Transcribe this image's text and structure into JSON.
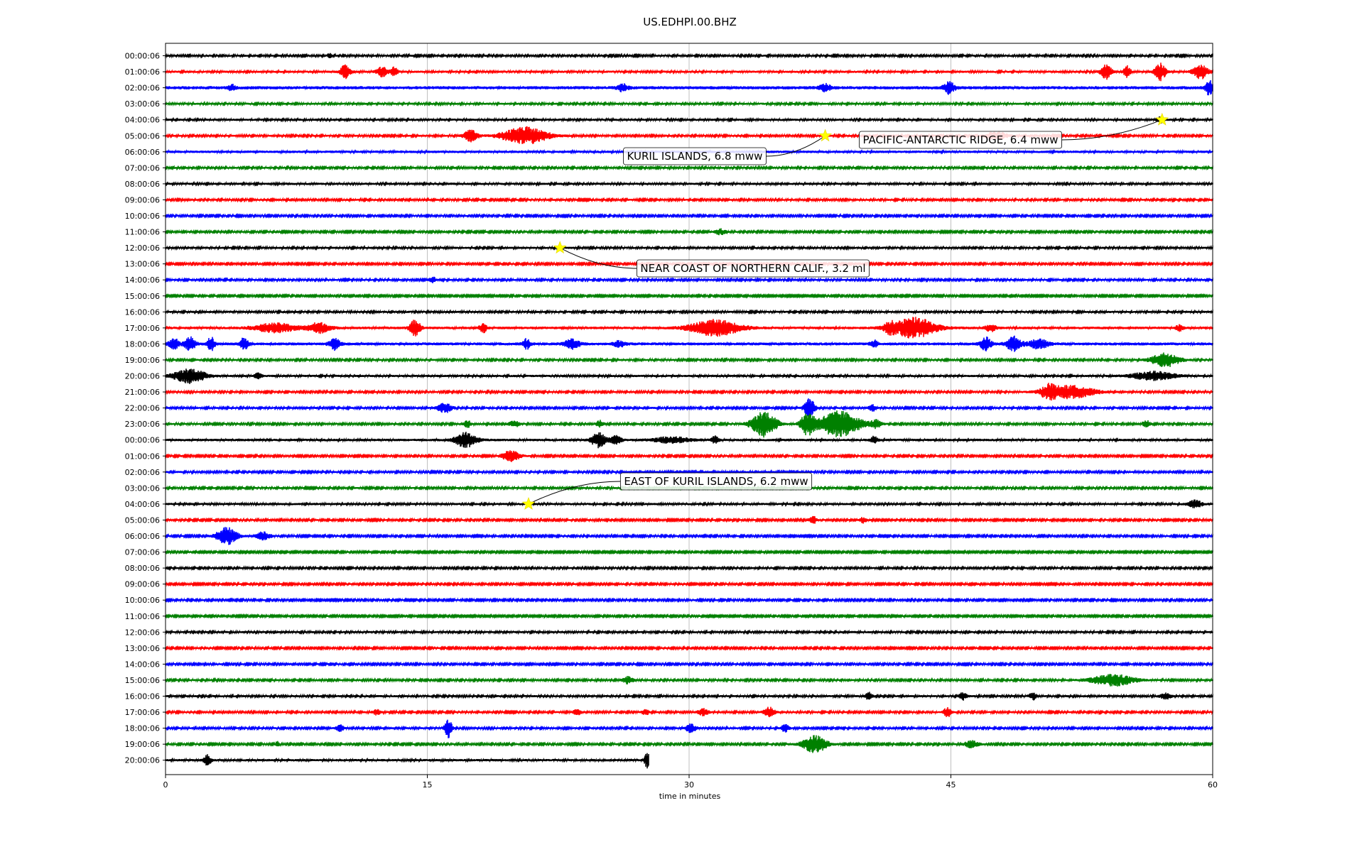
{
  "chart_data": {
    "type": "line",
    "title": "US.EDHPI.00.BHZ",
    "xlabel": "time in minutes",
    "ylabel": "",
    "xlim": [
      0,
      60
    ],
    "xticks": [
      0,
      15,
      30,
      45,
      60
    ],
    "grid": "vertical",
    "trace_colors": [
      "#000000",
      "#ff0000",
      "#0000ff",
      "#008000"
    ],
    "row_labels": [
      "00:00:06",
      "01:00:06",
      "02:00:06",
      "03:00:06",
      "04:00:06",
      "05:00:06",
      "06:00:06",
      "07:00:06",
      "08:00:06",
      "09:00:06",
      "10:00:06",
      "11:00:06",
      "12:00:06",
      "13:00:06",
      "14:00:06",
      "15:00:06",
      "16:00:06",
      "17:00:06",
      "18:00:06",
      "19:00:06",
      "20:00:06",
      "21:00:06",
      "22:00:06",
      "23:00:06",
      "00:00:06",
      "01:00:06",
      "02:00:06",
      "03:00:06",
      "04:00:06",
      "05:00:06",
      "06:00:06",
      "07:00:06",
      "08:00:06",
      "09:00:06",
      "10:00:06",
      "11:00:06",
      "12:00:06",
      "13:00:06",
      "14:00:06",
      "15:00:06",
      "16:00:06",
      "17:00:06",
      "18:00:06",
      "19:00:06",
      "20:00:06"
    ],
    "last_row_end_minute": 27.7,
    "noise_levels": [
      0.13,
      0.15,
      0.22,
      0.14,
      0.15,
      0.13,
      0.17,
      0.13,
      0.15,
      0.13,
      0.12,
      0.12,
      0.14,
      0.12,
      0.13,
      0.11,
      0.14,
      0.18,
      0.2,
      0.13,
      0.15,
      0.13,
      0.13,
      0.13,
      0.17,
      0.12,
      0.13,
      0.13,
      0.15,
      0.12,
      0.12,
      0.11,
      0.13,
      0.12,
      0.12,
      0.11,
      0.14,
      0.12,
      0.12,
      0.13,
      0.14,
      0.13,
      0.13,
      0.12,
      0.16
    ],
    "bursts": [
      {
        "row": 0,
        "minute": 9.4,
        "amplitude": 0.4,
        "width": 0.1
      },
      {
        "row": 1,
        "minute": 10.3,
        "amplitude": 0.9,
        "width": 0.3
      },
      {
        "row": 1,
        "minute": 12.4,
        "amplitude": 0.7,
        "width": 0.3
      },
      {
        "row": 1,
        "minute": 13.1,
        "amplitude": 0.6,
        "width": 0.2
      },
      {
        "row": 1,
        "minute": 53.9,
        "amplitude": 1.0,
        "width": 0.3
      },
      {
        "row": 1,
        "minute": 55.1,
        "amplitude": 0.8,
        "width": 0.2
      },
      {
        "row": 1,
        "minute": 57.0,
        "amplitude": 1.2,
        "width": 0.3
      },
      {
        "row": 1,
        "minute": 59.3,
        "amplitude": 1.0,
        "width": 0.4
      },
      {
        "row": 2,
        "minute": 3.8,
        "amplitude": 0.4,
        "width": 0.2
      },
      {
        "row": 2,
        "minute": 26.2,
        "amplitude": 0.5,
        "width": 0.3
      },
      {
        "row": 2,
        "minute": 37.8,
        "amplitude": 0.5,
        "width": 0.3
      },
      {
        "row": 2,
        "minute": 44.9,
        "amplitude": 0.8,
        "width": 0.3
      },
      {
        "row": 2,
        "minute": 59.8,
        "amplitude": 1.0,
        "width": 0.2
      },
      {
        "row": 4,
        "minute": 57.0,
        "amplitude": 0.4,
        "width": 0.2
      },
      {
        "row": 5,
        "minute": 17.5,
        "amplitude": 0.8,
        "width": 0.4
      },
      {
        "row": 5,
        "minute": 20.6,
        "amplitude": 1.2,
        "width": 1.3
      },
      {
        "row": 5,
        "minute": 47.6,
        "amplitude": 0.6,
        "width": 0.6
      },
      {
        "row": 11,
        "minute": 31.8,
        "amplitude": 0.4,
        "width": 0.3
      },
      {
        "row": 14,
        "minute": 15.3,
        "amplitude": 0.4,
        "width": 0.2
      },
      {
        "row": 17,
        "minute": 6.3,
        "amplitude": 0.6,
        "width": 1.2
      },
      {
        "row": 17,
        "minute": 8.8,
        "amplitude": 0.7,
        "width": 0.6
      },
      {
        "row": 17,
        "minute": 14.3,
        "amplitude": 1.1,
        "width": 0.3
      },
      {
        "row": 17,
        "minute": 18.2,
        "amplitude": 0.7,
        "width": 0.2
      },
      {
        "row": 17,
        "minute": 31.5,
        "amplitude": 1.1,
        "width": 1.4
      },
      {
        "row": 17,
        "minute": 41.5,
        "amplitude": 0.6,
        "width": 0.3
      },
      {
        "row": 17,
        "minute": 42.9,
        "amplitude": 1.4,
        "width": 1.2
      },
      {
        "row": 17,
        "minute": 47.3,
        "amplitude": 0.5,
        "width": 0.3
      },
      {
        "row": 17,
        "minute": 58.1,
        "amplitude": 0.4,
        "width": 0.2
      },
      {
        "row": 18,
        "minute": 0.5,
        "amplitude": 0.7,
        "width": 0.3
      },
      {
        "row": 18,
        "minute": 1.4,
        "amplitude": 0.9,
        "width": 0.3
      },
      {
        "row": 18,
        "minute": 2.6,
        "amplitude": 1.0,
        "width": 0.2
      },
      {
        "row": 18,
        "minute": 4.5,
        "amplitude": 1.0,
        "width": 0.2
      },
      {
        "row": 18,
        "minute": 9.7,
        "amplitude": 0.8,
        "width": 0.3
      },
      {
        "row": 18,
        "minute": 20.7,
        "amplitude": 0.7,
        "width": 0.2
      },
      {
        "row": 18,
        "minute": 23.3,
        "amplitude": 0.7,
        "width": 0.4
      },
      {
        "row": 18,
        "minute": 26.0,
        "amplitude": 0.4,
        "width": 0.3
      },
      {
        "row": 18,
        "minute": 40.6,
        "amplitude": 0.5,
        "width": 0.2
      },
      {
        "row": 18,
        "minute": 47.0,
        "amplitude": 0.9,
        "width": 0.3
      },
      {
        "row": 18,
        "minute": 48.6,
        "amplitude": 1.0,
        "width": 0.4
      },
      {
        "row": 18,
        "minute": 50.0,
        "amplitude": 0.6,
        "width": 0.6
      },
      {
        "row": 19,
        "minute": 57.3,
        "amplitude": 1.0,
        "width": 0.8
      },
      {
        "row": 20,
        "minute": 1.4,
        "amplitude": 1.0,
        "width": 0.9
      },
      {
        "row": 20,
        "minute": 5.3,
        "amplitude": 0.4,
        "width": 0.2
      },
      {
        "row": 20,
        "minute": 56.6,
        "amplitude": 0.6,
        "width": 1.2
      },
      {
        "row": 21,
        "minute": 50.6,
        "amplitude": 0.8,
        "width": 0.4
      },
      {
        "row": 21,
        "minute": 51.8,
        "amplitude": 0.9,
        "width": 1.4
      },
      {
        "row": 22,
        "minute": 16.0,
        "amplitude": 0.7,
        "width": 0.4
      },
      {
        "row": 22,
        "minute": 36.9,
        "amplitude": 1.3,
        "width": 0.3
      },
      {
        "row": 22,
        "minute": 40.5,
        "amplitude": 0.5,
        "width": 0.2
      },
      {
        "row": 23,
        "minute": 17.3,
        "amplitude": 0.5,
        "width": 0.2
      },
      {
        "row": 23,
        "minute": 20.0,
        "amplitude": 0.4,
        "width": 0.3
      },
      {
        "row": 23,
        "minute": 24.9,
        "amplitude": 0.5,
        "width": 0.2
      },
      {
        "row": 23,
        "minute": 34.3,
        "amplitude": 1.8,
        "width": 0.7
      },
      {
        "row": 23,
        "minute": 36.8,
        "amplitude": 1.5,
        "width": 0.4
      },
      {
        "row": 23,
        "minute": 38.6,
        "amplitude": 1.8,
        "width": 1.2
      },
      {
        "row": 23,
        "minute": 40.7,
        "amplitude": 0.5,
        "width": 0.3
      },
      {
        "row": 23,
        "minute": 56.2,
        "amplitude": 0.5,
        "width": 0.2
      },
      {
        "row": 24,
        "minute": 17.2,
        "amplitude": 1.0,
        "width": 0.6
      },
      {
        "row": 24,
        "minute": 24.8,
        "amplitude": 1.0,
        "width": 0.4
      },
      {
        "row": 24,
        "minute": 25.8,
        "amplitude": 0.6,
        "width": 0.3
      },
      {
        "row": 24,
        "minute": 29.0,
        "amplitude": 0.4,
        "width": 1.0
      },
      {
        "row": 24,
        "minute": 31.5,
        "amplitude": 0.5,
        "width": 0.2
      },
      {
        "row": 24,
        "minute": 40.6,
        "amplitude": 0.5,
        "width": 0.2
      },
      {
        "row": 25,
        "minute": 19.8,
        "amplitude": 0.8,
        "width": 0.5
      },
      {
        "row": 28,
        "minute": 59.0,
        "amplitude": 0.5,
        "width": 0.4
      },
      {
        "row": 29,
        "minute": 37.1,
        "amplitude": 0.6,
        "width": 0.2
      },
      {
        "row": 29,
        "minute": 40.0,
        "amplitude": 0.4,
        "width": 0.2
      },
      {
        "row": 30,
        "minute": 3.5,
        "amplitude": 1.2,
        "width": 0.6
      },
      {
        "row": 30,
        "minute": 5.6,
        "amplitude": 0.6,
        "width": 0.4
      },
      {
        "row": 39,
        "minute": 26.5,
        "amplitude": 0.5,
        "width": 0.3
      },
      {
        "row": 39,
        "minute": 54.3,
        "amplitude": 0.8,
        "width": 1.2
      },
      {
        "row": 40,
        "minute": 40.3,
        "amplitude": 0.5,
        "width": 0.2
      },
      {
        "row": 40,
        "minute": 45.7,
        "amplitude": 0.5,
        "width": 0.2
      },
      {
        "row": 40,
        "minute": 49.7,
        "amplitude": 0.5,
        "width": 0.2
      },
      {
        "row": 40,
        "minute": 57.3,
        "amplitude": 0.4,
        "width": 0.3
      },
      {
        "row": 41,
        "minute": 12.1,
        "amplitude": 0.4,
        "width": 0.2
      },
      {
        "row": 41,
        "minute": 23.6,
        "amplitude": 0.5,
        "width": 0.2
      },
      {
        "row": 41,
        "minute": 27.5,
        "amplitude": 0.4,
        "width": 0.2
      },
      {
        "row": 41,
        "minute": 30.8,
        "amplitude": 0.5,
        "width": 0.3
      },
      {
        "row": 41,
        "minute": 34.6,
        "amplitude": 0.7,
        "width": 0.3
      },
      {
        "row": 41,
        "minute": 44.8,
        "amplitude": 0.7,
        "width": 0.2
      },
      {
        "row": 42,
        "minute": 10.0,
        "amplitude": 0.5,
        "width": 0.2
      },
      {
        "row": 42,
        "minute": 16.2,
        "amplitude": 1.4,
        "width": 0.2
      },
      {
        "row": 42,
        "minute": 30.1,
        "amplitude": 0.6,
        "width": 0.3
      },
      {
        "row": 42,
        "minute": 35.5,
        "amplitude": 0.6,
        "width": 0.2
      },
      {
        "row": 43,
        "minute": 6.4,
        "amplitude": 0.4,
        "width": 0.1
      },
      {
        "row": 43,
        "minute": 37.2,
        "amplitude": 1.2,
        "width": 0.7
      },
      {
        "row": 43,
        "minute": 46.2,
        "amplitude": 0.5,
        "width": 0.4
      },
      {
        "row": 44,
        "minute": 2.4,
        "amplitude": 0.7,
        "width": 0.2
      },
      {
        "row": 44,
        "minute": 27.6,
        "amplitude": 1.1,
        "width": 0.15
      }
    ],
    "annotations": [
      {
        "text": "KURIL ISLANDS, 6.8 mww",
        "row": 5,
        "minute": 37.8,
        "label_side": "left"
      },
      {
        "text": "PACIFIC-ANTARCTIC RIDGE, 6.4 mww",
        "row": 4,
        "minute": 57.1,
        "label_side": "left"
      },
      {
        "text": "NEAR COAST OF NORTHERN CALIF., 3.2 ml",
        "row": 12,
        "minute": 22.6,
        "label_side": "right"
      },
      {
        "text": "EAST OF KURIL ISLANDS, 6.2 mww",
        "row": 28,
        "minute": 20.8,
        "label_side": "right"
      }
    ],
    "marker_color": "#ffff00"
  }
}
